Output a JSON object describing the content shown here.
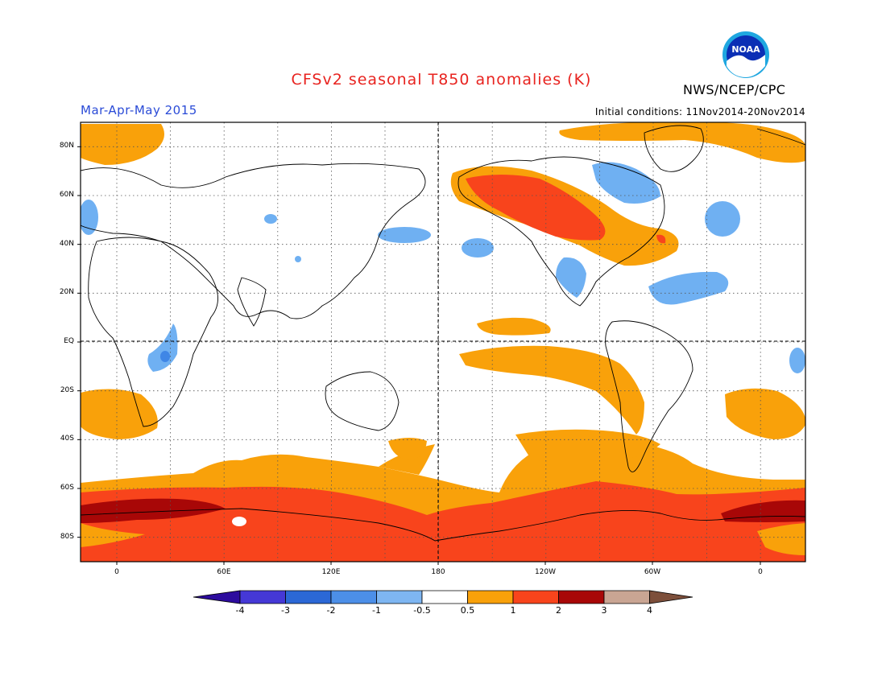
{
  "header": {
    "title": "CFSv2 seasonal T850 anomalies (K)",
    "period": "Mar-Apr-May 2015",
    "initial_conditions": "Initial conditions: 11Nov2014-20Nov2014",
    "agency": "NWS/NCEP/CPC",
    "logo_text": "NOAA"
  },
  "map": {
    "lat_labels": [
      "80N",
      "60N",
      "40N",
      "20N",
      "EQ",
      "20S",
      "40S",
      "60S",
      "80S"
    ],
    "lon_labels": [
      "0",
      "60E",
      "120E",
      "180",
      "120W",
      "60W",
      "0"
    ],
    "projection": "cylindrical equidistant, centered on 180",
    "grid": "dotted every 20 degrees"
  },
  "colorbar": {
    "labels": [
      "-4",
      "-3",
      "-2",
      "-1",
      "-0.5",
      "0.5",
      "1",
      "2",
      "3",
      "4"
    ],
    "colors": [
      "#2d0c9e",
      "#4538d6",
      "#2b68d6",
      "#4c8fe8",
      "#7eb6f2",
      "#ffffff",
      "#f9a10a",
      "#f8441c",
      "#a80707",
      "#c9a593",
      "#7d4f3b"
    ]
  },
  "palette": {
    "orange": "#f9a10a",
    "red": "#f8441c",
    "darkred": "#a80707",
    "lightblue": "#6fb0f2",
    "blue": "#3f86e6"
  }
}
